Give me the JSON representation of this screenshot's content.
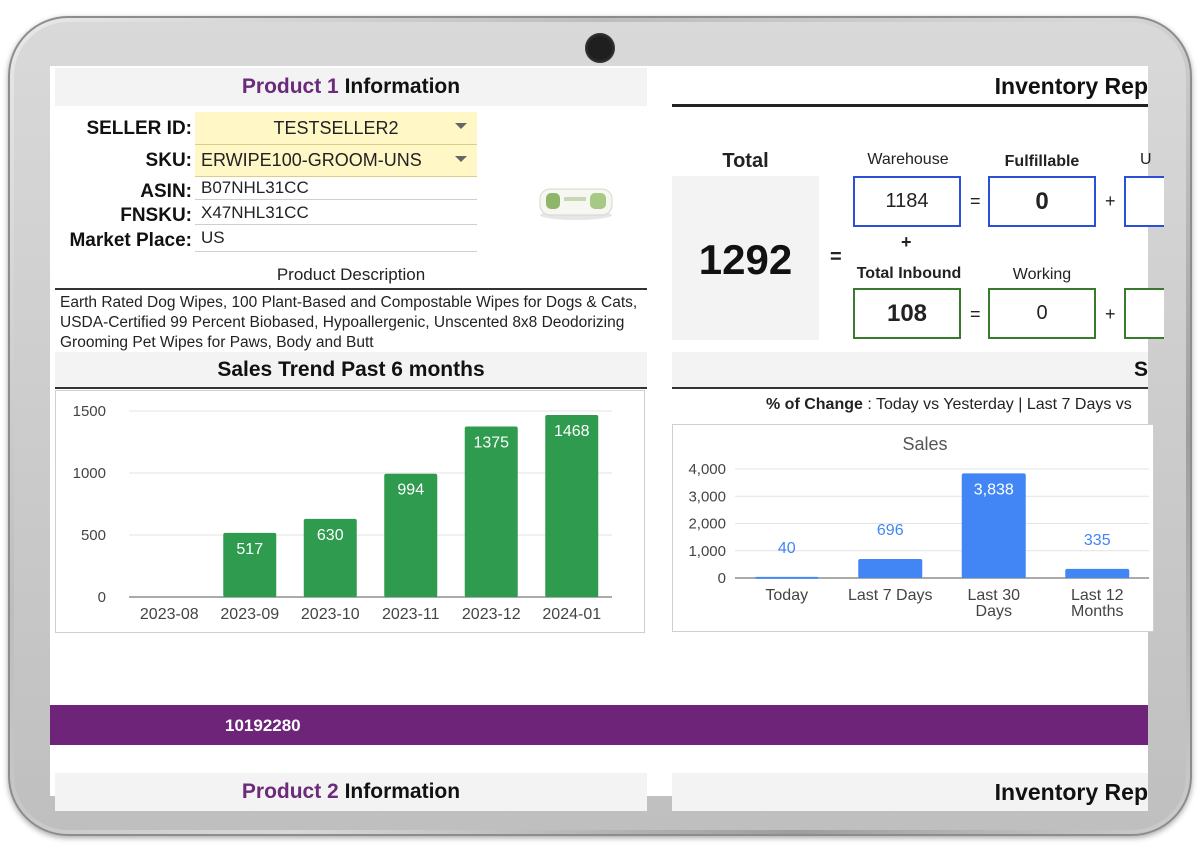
{
  "product1": {
    "header_product": "Product 1",
    "header_info": "Information",
    "seller_label": "SELLER ID:",
    "seller_value": "TESTSELLER2",
    "sku_label": "SKU:",
    "sku_value": "ERWIPE100-GROOM-UNS",
    "asin_label": "ASIN:",
    "asin_value": "B07NHL31CC",
    "fnsku_label": "FNSKU:",
    "fnsku_value": "X47NHL31CC",
    "market_label": "Market Place:",
    "market_value": "US",
    "desc_title": "Product Description",
    "desc_text": "Earth Rated Dog Wipes, 100 Plant-Based and Compostable Wipes for Dogs & Cats, USDA-Certified 99 Percent Biobased, Hypoallergenic, Unscented 8x8 Deodorizing Grooming Pet Wipes for Paws, Body and Butt"
  },
  "inventory": {
    "header": "Inventory Rep",
    "total_label": "Total",
    "total_value": "1292",
    "equals": "=",
    "plus": "+",
    "warehouse_label": "Warehouse",
    "warehouse_value": "1184",
    "fulfillable_label": "Fulfillable",
    "fulfillable_value": "0",
    "unfulfillable_label": "U",
    "total_inbound_label": "Total Inbound",
    "total_inbound_value": "108",
    "working_label": "Working",
    "working_value": "0"
  },
  "sales_trend": {
    "header": "Sales Trend Past 6 months"
  },
  "sales_panel": {
    "header": "S",
    "change_bold": "% of Change",
    "change_text": " : Today vs Yesterday | Last 7 Days vs"
  },
  "chart_data": [
    {
      "type": "bar",
      "categories": [
        "2023-08",
        "2023-09",
        "2023-10",
        "2023-11",
        "2023-12",
        "2024-01"
      ],
      "values": [
        0,
        517,
        630,
        994,
        1375,
        1468
      ],
      "data_labels": [
        "",
        "517",
        "630",
        "994",
        "1375",
        "1468"
      ],
      "ylim": [
        0,
        1500
      ],
      "yticks": [
        "0",
        "500",
        "1000",
        "1500"
      ],
      "color": "#2e9b4e",
      "grid": true
    },
    {
      "type": "bar",
      "title": "Sales",
      "categories": [
        [
          "Today"
        ],
        [
          "Last 7 Days"
        ],
        [
          "Last 30",
          "Days"
        ],
        [
          "Last 12",
          "Months"
        ]
      ],
      "values": [
        40,
        696,
        3838,
        335
      ],
      "data_labels": [
        "40",
        "696",
        "3,838",
        "335"
      ],
      "ylim": [
        0,
        4000
      ],
      "yticks": [
        "0",
        "1,000",
        "2,000",
        "3,000",
        "4,000"
      ],
      "color": "#4285f4",
      "grid": true
    }
  ],
  "bar_id": "10192280",
  "product2": {
    "header_product": "Product 2",
    "header_info": "Information",
    "inventory_header": "Inventory Rep"
  }
}
